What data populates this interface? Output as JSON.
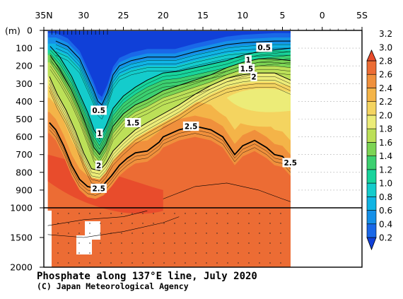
{
  "title": "Phosphate along 137°E line, July 2020",
  "credit": "(C) Japan Meteorological Agency",
  "y_unit": "(m)",
  "colorbar": {
    "levels": [
      0.2,
      0.4,
      0.6,
      0.8,
      1.0,
      1.2,
      1.4,
      1.6,
      1.8,
      2.0,
      2.2,
      2.4,
      2.6,
      2.8,
      3.0,
      3.2
    ],
    "labels": [
      "0.2",
      "0.4",
      "0.6",
      "0.8",
      "1.0",
      "1.2",
      "1.4",
      "1.6",
      "1.8",
      "2.0",
      "2.2",
      "2.4",
      "2.6",
      "2.8",
      "3.0",
      "3.2"
    ],
    "colors": [
      "#1040d8",
      "#1a68e8",
      "#1590e8",
      "#10b4e4",
      "#14cccc",
      "#18d49c",
      "#3cd070",
      "#7cd454",
      "#bce058",
      "#ecec78",
      "#f4d460",
      "#f4b448",
      "#f0903c",
      "#ec6c34",
      "#e84c2c"
    ]
  },
  "chart_data": {
    "type": "heatmap",
    "variable": "Phosphate",
    "x_axis": {
      "ticks": [
        35,
        30,
        25,
        20,
        15,
        10,
        5,
        0,
        -5
      ],
      "tick_labels": [
        "35N",
        "30",
        "25",
        "20",
        "15",
        "10",
        "5",
        "0",
        "5S"
      ],
      "range": [
        35,
        -5
      ]
    },
    "y_axis": {
      "ticks": [
        0,
        100,
        200,
        300,
        400,
        500,
        600,
        700,
        800,
        900,
        1000,
        1500,
        2000
      ],
      "tick_labels": [
        "0",
        "100",
        "200",
        "300",
        "400",
        "500",
        "600",
        "700",
        "800",
        "900",
        "1000",
        "1500",
        "2000"
      ],
      "range": [
        0,
        2000
      ],
      "unit": "(m)"
    },
    "data_extent_lat": [
      34.5,
      3
    ],
    "contours": [
      {
        "value": 0.5,
        "label": "0.5",
        "points": [
          [
            33.5,
            60
          ],
          [
            32,
            90
          ],
          [
            30.5,
            160
          ],
          [
            29.5,
            260
          ],
          [
            28.8,
            330
          ],
          [
            28.2,
            400
          ],
          [
            27.7,
            420
          ],
          [
            27,
            350
          ],
          [
            26.3,
            250
          ],
          [
            25.5,
            200
          ],
          [
            24,
            170
          ],
          [
            22,
            150
          ],
          [
            20,
            150
          ],
          [
            18.5,
            150
          ],
          [
            16,
            120
          ],
          [
            14,
            100
          ],
          [
            12,
            80
          ],
          [
            10,
            70
          ],
          [
            8,
            65
          ],
          [
            6,
            60
          ],
          [
            4,
            60
          ],
          [
            3,
            60
          ]
        ]
      },
      {
        "value": 1.0,
        "label": "1",
        "points": [
          [
            34.2,
            90
          ],
          [
            33,
            150
          ],
          [
            31.5,
            260
          ],
          [
            30.5,
            360
          ],
          [
            29.5,
            460
          ],
          [
            28.7,
            560
          ],
          [
            28,
            610
          ],
          [
            27.2,
            540
          ],
          [
            26.3,
            440
          ],
          [
            25,
            370
          ],
          [
            23.5,
            320
          ],
          [
            22,
            280
          ],
          [
            20,
            240
          ],
          [
            18,
            230
          ],
          [
            16,
            210
          ],
          [
            14,
            190
          ],
          [
            12,
            170
          ],
          [
            10,
            140
          ],
          [
            8,
            120
          ],
          [
            6,
            110
          ],
          [
            4,
            100
          ],
          [
            3,
            100
          ]
        ]
      },
      {
        "value": 1.5,
        "label": "1.5",
        "points": [
          [
            34.2,
            140
          ],
          [
            33,
            220
          ],
          [
            31.6,
            330
          ],
          [
            30.5,
            440
          ],
          [
            29.5,
            560
          ],
          [
            28.7,
            660
          ],
          [
            28,
            700
          ],
          [
            27.2,
            640
          ],
          [
            26.3,
            540
          ],
          [
            25,
            470
          ],
          [
            23.5,
            420
          ],
          [
            22,
            390
          ],
          [
            20,
            340
          ],
          [
            18,
            310
          ],
          [
            16,
            280
          ],
          [
            14,
            250
          ],
          [
            12,
            210
          ],
          [
            10,
            180
          ],
          [
            8,
            160
          ],
          [
            6,
            160
          ],
          [
            4,
            170
          ],
          [
            3,
            180
          ]
        ]
      },
      {
        "value": 2.0,
        "label": "2",
        "points": [
          [
            34.3,
            260
          ],
          [
            33.3,
            360
          ],
          [
            32.2,
            450
          ],
          [
            31,
            570
          ],
          [
            30,
            690
          ],
          [
            29,
            780
          ],
          [
            28,
            790
          ],
          [
            27.2,
            750
          ],
          [
            26.3,
            680
          ],
          [
            25,
            620
          ],
          [
            23.5,
            560
          ],
          [
            22,
            520
          ],
          [
            20,
            470
          ],
          [
            18,
            420
          ],
          [
            16,
            360
          ],
          [
            14,
            310
          ],
          [
            12,
            270
          ],
          [
            10,
            250
          ],
          [
            8,
            240
          ],
          [
            6,
            240
          ],
          [
            4,
            280
          ],
          [
            3,
            330
          ]
        ]
      },
      {
        "value": 2.5,
        "label": "2.5",
        "points": [
          [
            34.3,
            520
          ],
          [
            33.5,
            560
          ],
          [
            32.5,
            650
          ],
          [
            31.5,
            760
          ],
          [
            30.5,
            840
          ],
          [
            29.5,
            880
          ],
          [
            28.5,
            890
          ],
          [
            27.5,
            870
          ],
          [
            26.5,
            820
          ],
          [
            25.5,
            760
          ],
          [
            24.5,
            720
          ],
          [
            23.5,
            690
          ],
          [
            22,
            680
          ],
          [
            20.5,
            630
          ],
          [
            20,
            600
          ],
          [
            18,
            560
          ],
          [
            16,
            540
          ],
          [
            14,
            560
          ],
          [
            12.5,
            600
          ],
          [
            11,
            700
          ],
          [
            10,
            650
          ],
          [
            8.5,
            620
          ],
          [
            7,
            660
          ],
          [
            6,
            700
          ],
          [
            5,
            710
          ],
          [
            4,
            760
          ],
          [
            3.4,
            720
          ],
          [
            3,
            700
          ]
        ]
      }
    ],
    "contour_labels": [
      {
        "text": "0.5",
        "lat": 28.1,
        "depth": 450
      },
      {
        "text": "1",
        "lat": 28.0,
        "depth": 580
      },
      {
        "text": "2",
        "lat": 28.1,
        "depth": 760
      },
      {
        "text": "2.5",
        "lat": 28.1,
        "depth": 890
      },
      {
        "text": "1.5",
        "lat": 23.8,
        "depth": 520
      },
      {
        "text": "2.5",
        "lat": 16.5,
        "depth": 540
      },
      {
        "text": "0.5",
        "lat": 7.3,
        "depth": 95
      },
      {
        "text": "1",
        "lat": 9.3,
        "depth": 165
      },
      {
        "text": "1.5",
        "lat": 9.5,
        "depth": 215
      },
      {
        "text": "2",
        "lat": 8.6,
        "depth": 260
      },
      {
        "text": "2.5",
        "lat": 4.0,
        "depth": 745
      }
    ]
  }
}
